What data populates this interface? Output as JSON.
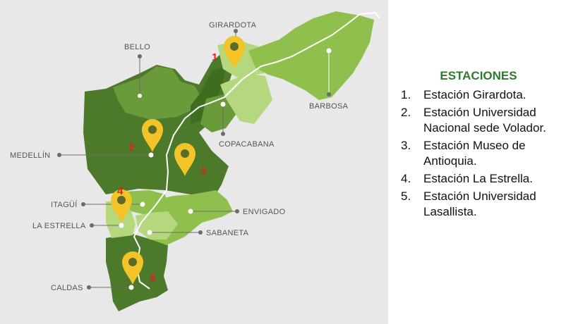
{
  "map": {
    "colors": {
      "background": "#e8e8e8",
      "dark_green": "#4d7a2a",
      "mid_green": "#6b9a3a",
      "light_green": "#8fc04e",
      "pale_green": "#b5d87f",
      "darkest_green": "#3f6d20",
      "river": "#ffffff",
      "pin": "#f2c428",
      "pin_dot": "#5a6b2a",
      "marker_number": "#e02020"
    },
    "municipalities": [
      {
        "id": "girardota",
        "name": "GIRARDOTA"
      },
      {
        "id": "bello",
        "name": "BELLO"
      },
      {
        "id": "barbosa",
        "name": "BARBOSA"
      },
      {
        "id": "copacabana",
        "name": "COPACABANA"
      },
      {
        "id": "medellin",
        "name": "MEDELLÍN"
      },
      {
        "id": "itagui",
        "name": "ITAGÜÍ"
      },
      {
        "id": "envigado",
        "name": "ENVIGADO"
      },
      {
        "id": "la_estrella",
        "name": "LA ESTRELLA"
      },
      {
        "id": "sabaneta",
        "name": "SABANETA"
      },
      {
        "id": "caldas",
        "name": "CALDAS"
      }
    ],
    "markers": [
      {
        "number": "1"
      },
      {
        "number": "2"
      },
      {
        "number": "3"
      },
      {
        "number": "4"
      },
      {
        "number": "5"
      }
    ]
  },
  "legend": {
    "title": "ESTACIONES",
    "items": [
      {
        "num": "1.",
        "text": "Estación Girardota."
      },
      {
        "num": "2.",
        "text": "Estación Universidad Nacional sede Volador."
      },
      {
        "num": "3.",
        "text": "Estación Museo de Antioquia."
      },
      {
        "num": "4.",
        "text": "Estación La Estrella."
      },
      {
        "num": "5.",
        "text": "Estación Universidad Lasallista."
      }
    ]
  }
}
